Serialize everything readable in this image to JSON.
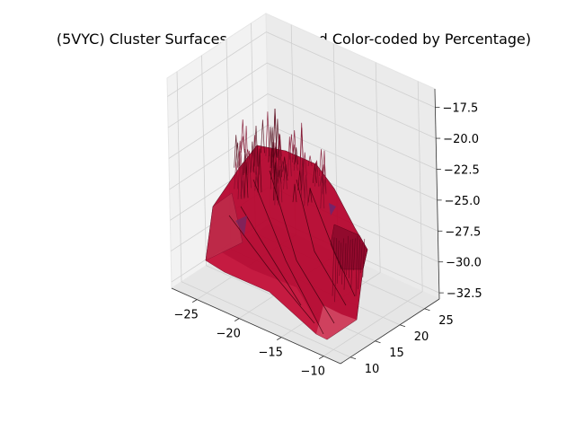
{
  "chart_data": {
    "type": "surface3d",
    "title": "(5VYC) Cluster Surfaces (Cleaned and Color-coded by Percentage)",
    "xlabel": "",
    "ylabel": "",
    "zlabel": "",
    "xlim": [
      -28,
      -8
    ],
    "ylim": [
      8,
      28
    ],
    "zlim": [
      -33,
      -16
    ],
    "x_ticks": [
      "−25",
      "−20",
      "−15",
      "−10"
    ],
    "x_tick_values": [
      -25,
      -20,
      -15,
      -10
    ],
    "y_ticks": [
      "10",
      "15",
      "20",
      "25"
    ],
    "y_tick_values": [
      10,
      15,
      20,
      25
    ],
    "z_ticks": [
      "−17.5",
      "−20.0",
      "−22.5",
      "−25.0",
      "−27.5",
      "−30.0",
      "−32.5"
    ],
    "z_tick_values": [
      -17.5,
      -20.0,
      -22.5,
      -25.0,
      -27.5,
      -30.0,
      -32.5
    ],
    "grid": true,
    "surface_color": "#b5002a",
    "surface_edge_color": "#5a0018",
    "pane_color": "#f2f2f2",
    "grid_color": "#d0d0d0"
  }
}
